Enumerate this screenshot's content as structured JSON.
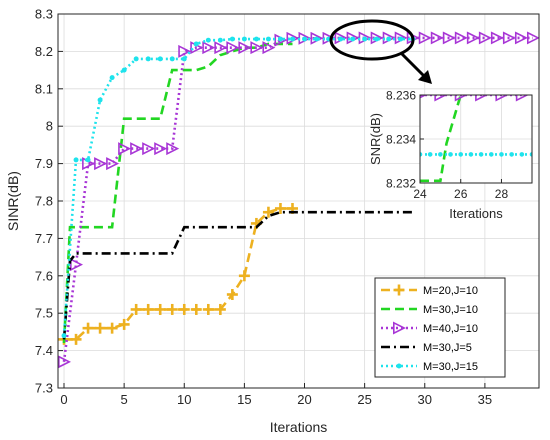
{
  "chart_data": {
    "type": "line",
    "xlabel": "Iterations",
    "ylabel": "SINR(dB)",
    "xlim": [
      -0.5,
      39.5
    ],
    "ylim": [
      7.3,
      8.3
    ],
    "xticks": [
      0,
      5,
      10,
      15,
      20,
      25,
      30,
      35
    ],
    "yticks": [
      7.3,
      7.4,
      7.5,
      7.6,
      7.7,
      7.8,
      7.9,
      8.0,
      8.1,
      8.2,
      8.3
    ],
    "ytick_labels": [
      "7.3",
      "7.4",
      "7.5",
      "7.6",
      "7.7",
      "7.8",
      "7.9",
      "8",
      "8.1",
      "8.2",
      "8.3"
    ],
    "grid": true,
    "legend_position": "bottom-right",
    "colors": {
      "M=20,J=10": "#EDB120",
      "M=30,J=10": "#22D622",
      "M=40,J=10": "#A836D6",
      "M=30,J=5": "#000000",
      "M=30,J=15": "#1EE3EC"
    },
    "series": [
      {
        "name": "M=20,J=10",
        "marker": "plus",
        "linestyle": "dash",
        "x": [
          0,
          1,
          2,
          3,
          4,
          5,
          6,
          7,
          8,
          9,
          10,
          11,
          12,
          13,
          14,
          15,
          16,
          17,
          18,
          19
        ],
        "y": [
          7.43,
          7.43,
          7.46,
          7.46,
          7.46,
          7.47,
          7.51,
          7.51,
          7.51,
          7.51,
          7.51,
          7.51,
          7.51,
          7.51,
          7.55,
          7.6,
          7.74,
          7.77,
          7.78,
          7.78
        ]
      },
      {
        "name": "M=30,J=10",
        "marker": "none",
        "linestyle": "dash",
        "x": [
          0,
          0.5,
          1,
          2,
          3,
          4,
          5,
          6,
          7,
          8,
          9,
          10,
          11,
          12,
          13,
          14,
          15,
          16,
          17,
          18,
          19
        ],
        "y": [
          7.42,
          7.73,
          7.73,
          7.73,
          7.73,
          7.73,
          8.02,
          8.02,
          8.02,
          8.02,
          8.15,
          8.15,
          8.15,
          8.16,
          8.19,
          8.2,
          8.21,
          8.21,
          8.22,
          8.22,
          8.22
        ]
      },
      {
        "name": "M=40,J=10",
        "marker": "triangle-right",
        "linestyle": "dot",
        "x": [
          0,
          1,
          2,
          3,
          4,
          5,
          6,
          7,
          8,
          9,
          10,
          11,
          12,
          13,
          14,
          15,
          16,
          17,
          18,
          19,
          20,
          21,
          22,
          23,
          24,
          25,
          26,
          27,
          28,
          29,
          30,
          31,
          32,
          33,
          34,
          35,
          36,
          37,
          38,
          39
        ],
        "y": [
          7.37,
          7.63,
          7.9,
          7.9,
          7.9,
          7.94,
          7.94,
          7.94,
          7.94,
          7.94,
          8.2,
          8.21,
          8.21,
          8.21,
          8.21,
          8.21,
          8.21,
          8.21,
          8.23,
          8.235,
          8.235,
          8.235,
          8.235,
          8.236,
          8.236,
          8.236,
          8.236,
          8.236,
          8.236,
          8.236,
          8.236,
          8.236,
          8.236,
          8.236,
          8.236,
          8.236,
          8.236,
          8.236,
          8.236,
          8.236
        ]
      },
      {
        "name": "M=30,J=5",
        "marker": "none",
        "linestyle": "dashdot",
        "x": [
          0,
          0.5,
          1,
          2,
          3,
          4,
          5,
          6,
          7,
          8,
          9,
          10,
          11,
          12,
          13,
          14,
          15,
          16,
          17,
          18,
          19,
          20,
          21,
          22,
          23,
          24,
          25,
          26,
          27,
          28,
          29
        ],
        "y": [
          7.43,
          7.64,
          7.66,
          7.66,
          7.66,
          7.66,
          7.66,
          7.66,
          7.66,
          7.66,
          7.66,
          7.73,
          7.73,
          7.73,
          7.73,
          7.73,
          7.73,
          7.73,
          7.76,
          7.77,
          7.77,
          7.77,
          7.77,
          7.77,
          7.77,
          7.77,
          7.77,
          7.77,
          7.77,
          7.77,
          7.77
        ]
      },
      {
        "name": "M=30,J=15",
        "marker": "dot",
        "linestyle": "dot",
        "x": [
          0,
          1,
          2,
          3,
          4,
          5,
          6,
          7,
          8,
          9,
          10,
          11,
          12,
          13,
          14,
          15,
          16,
          17,
          18,
          19,
          20,
          21,
          22,
          23,
          24,
          25,
          26,
          27,
          28,
          29
        ],
        "y": [
          7.44,
          7.91,
          7.91,
          8.07,
          8.13,
          8.15,
          8.18,
          8.18,
          8.18,
          8.18,
          8.18,
          8.22,
          8.23,
          8.23,
          8.233,
          8.233,
          8.233,
          8.233,
          8.233,
          8.233,
          8.233,
          8.233,
          8.233,
          8.233,
          8.233,
          8.233,
          8.233,
          8.233,
          8.233,
          8.233
        ]
      }
    ],
    "inset": {
      "xlabel": "Iterations",
      "ylabel": "SNR(dB)",
      "xlim": [
        24,
        29.5
      ],
      "ylim": [
        8.232,
        8.236
      ],
      "xticks": [
        24,
        26,
        28
      ],
      "yticks": [
        8.232,
        8.234,
        8.236
      ],
      "ytick_labels": [
        "8.232",
        "8.234",
        "8.236"
      ],
      "series": [
        {
          "name": "M=30,J=10",
          "x": [
            24,
            25,
            25.3,
            26
          ],
          "y": [
            8.2321,
            8.2321,
            8.2338,
            8.236
          ]
        },
        {
          "name": "M=40,J=10",
          "x": [
            24,
            25,
            26,
            27,
            28,
            29
          ],
          "y": [
            8.236,
            8.236,
            8.236,
            8.236,
            8.236,
            8.236
          ]
        },
        {
          "name": "M=30,J=15",
          "x": [
            24,
            24.5,
            25,
            25.5,
            26,
            26.5,
            27,
            27.5,
            28,
            28.5,
            29,
            29.5
          ],
          "y": [
            8.2333,
            8.2333,
            8.2333,
            8.2333,
            8.2333,
            8.2333,
            8.2333,
            8.2333,
            8.2333,
            8.2333,
            8.2333,
            8.2333
          ]
        }
      ]
    }
  }
}
